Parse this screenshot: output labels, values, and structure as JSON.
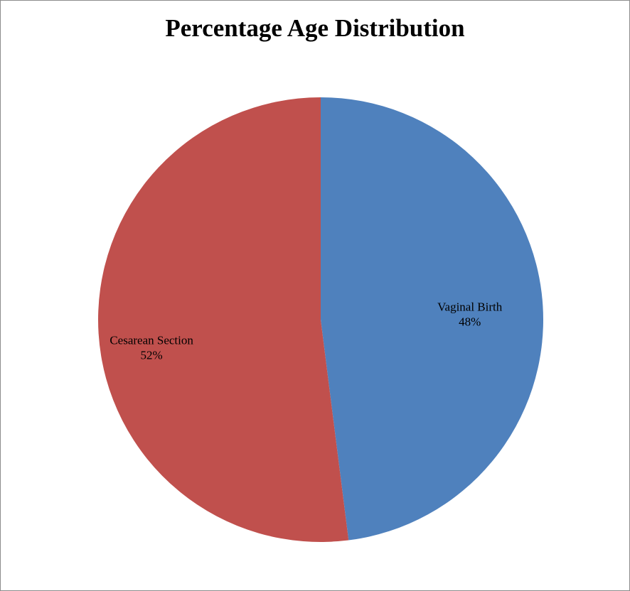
{
  "chart_data": {
    "type": "pie",
    "title": "Percentage Age Distribution",
    "slices": [
      {
        "label": "Vaginal Birth",
        "value": 48,
        "value_label": "48%",
        "color": "#4f81bd"
      },
      {
        "label": "Cesarean Section",
        "value": 52,
        "value_label": "52%",
        "color": "#c0504d"
      }
    ],
    "start": "12 o'clock",
    "direction": "clockwise",
    "legend": "none",
    "labels_position": "inside"
  }
}
